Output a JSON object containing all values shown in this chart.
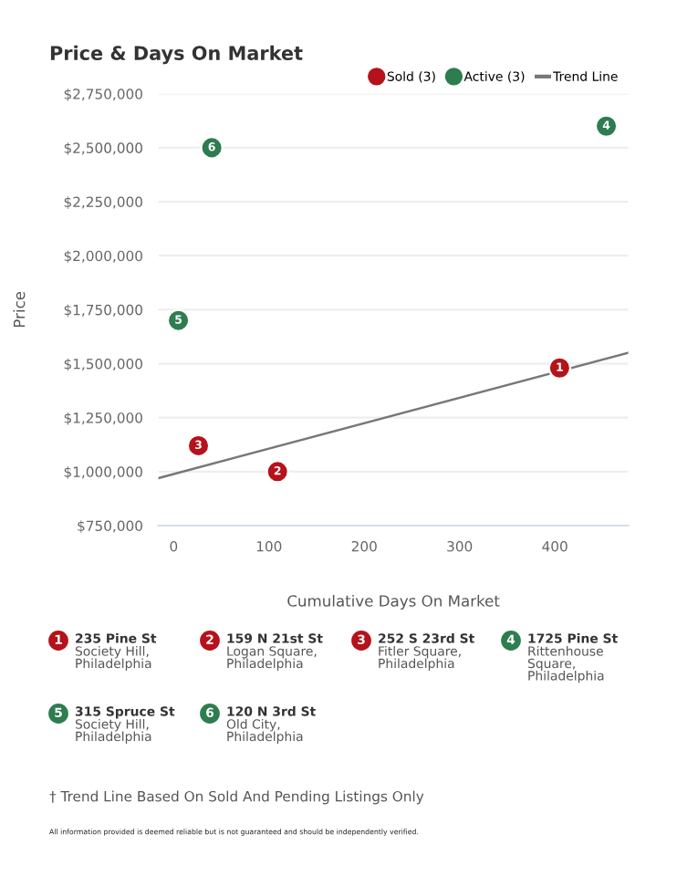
{
  "chart_data": {
    "type": "scatter",
    "title": "Price & Days On Market",
    "xlabel": "Cumulative Days On Market",
    "ylabel": "Price",
    "series": [
      {
        "name": "Sold (3)",
        "color": "#b5121b",
        "x": [
          405,
          109,
          26
        ],
        "values": [
          1480000,
          1000000,
          1120000
        ],
        "marker": "circle"
      },
      {
        "name": "Active (3)",
        "color": "#2e7d4f",
        "x": [
          454,
          5,
          40
        ],
        "values": [
          2600000,
          1700000,
          2500000
        ],
        "marker": "circle"
      },
      {
        "name": "Trend Line",
        "type": "line",
        "color": "#777777",
        "x": [
          -16,
          477
        ],
        "values": [
          970000,
          1550000
        ]
      }
    ],
    "xlim": [
      -16,
      477
    ],
    "xticks": [
      0,
      100,
      200,
      300,
      400
    ],
    "ylim": [
      750000,
      2750000
    ],
    "yticks": [
      {
        "value": 750000,
        "label": "$750,000"
      },
      {
        "value": 1000000,
        "label": "$1,000,000"
      },
      {
        "value": 1250000,
        "label": "$1,250,000"
      },
      {
        "value": 1500000,
        "label": "$1,500,000"
      },
      {
        "value": 1750000,
        "label": "$1,750,000"
      },
      {
        "value": 2000000,
        "label": "$2,000,000"
      },
      {
        "value": 2250000,
        "label": "$2,250,000"
      },
      {
        "value": 2500000,
        "label": "$2,500,000"
      },
      {
        "value": 2750000,
        "label": "$2,750,000"
      }
    ],
    "grid": "y",
    "legend": "top right",
    "annotations": [
      {
        "text": "1",
        "x": 405,
        "y": 1480000
      },
      {
        "text": "2",
        "x": 109,
        "y": 1000000
      },
      {
        "text": "3",
        "x": 26,
        "y": 1120000
      },
      {
        "text": "4",
        "x": 454,
        "y": 2600000
      },
      {
        "text": "5",
        "x": 5,
        "y": 1700000
      },
      {
        "text": "6",
        "x": 40,
        "y": 2500000
      },
      "235 Pine St\nSociety Hill,\nPhiladelphia",
      "159 N 21st St\nLogan Square,\nPhiladelphia",
      "252 S 23rd St\nFitler Square,\nPhiladelphia",
      "1725 Pine St\nRittenhouse\nSquare,\nPhiladelphia",
      "315 Spruce St\nSociety Hill,\nPhiladelphia",
      "120 N 3rd St\nOld City,\nPhiladelphia",
      "† Trend Line Based On Sold And Pending Listings Only",
      "All information provided is deemed reliable but is not guaranteed and should be independently verified."
    ]
  }
}
